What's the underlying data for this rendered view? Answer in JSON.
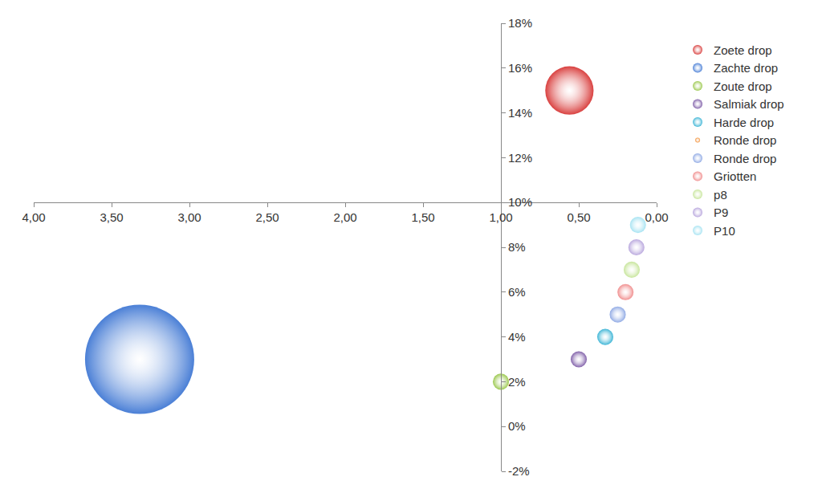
{
  "chart_data": {
    "type": "bubble",
    "series": [
      {
        "name": "Zoete drop",
        "color": "#d9403f",
        "x": [
          0.56
        ],
        "values": [
          15
        ],
        "sizes": [
          9
        ]
      },
      {
        "name": "Zachte drop",
        "color": "#4a7fd6",
        "x": [
          3.32
        ],
        "values": [
          3
        ],
        "sizes": [
          46
        ]
      },
      {
        "name": "Zoute drop",
        "color": "#9bc84d",
        "x": [
          1.0
        ],
        "values": [
          2
        ],
        "sizes": [
          1
        ]
      },
      {
        "name": "Salmiak drop",
        "color": "#7f5ea8",
        "x": [
          0.5
        ],
        "values": [
          3
        ],
        "sizes": [
          1
        ]
      },
      {
        "name": "Harde drop",
        "color": "#3db5d6",
        "x": [
          0.33
        ],
        "values": [
          4
        ],
        "sizes": [
          1
        ]
      },
      {
        "name": "Ronde drop",
        "color": "#f3923b",
        "x": [
          null
        ],
        "values": [
          null
        ],
        "sizes": [
          null
        ]
      },
      {
        "name": "Ronde drop",
        "color": "#8fa9e4",
        "x": [
          0.25
        ],
        "values": [
          5
        ],
        "sizes": [
          1
        ]
      },
      {
        "name": "Griotten",
        "color": "#f08d8d",
        "x": [
          0.2
        ],
        "values": [
          6
        ],
        "sizes": [
          1
        ]
      },
      {
        "name": "p8",
        "color": "#c7e59b",
        "x": [
          0.16
        ],
        "values": [
          7
        ],
        "sizes": [
          1
        ]
      },
      {
        "name": "P9",
        "color": "#b8a6dd",
        "x": [
          0.13
        ],
        "values": [
          8
        ],
        "sizes": [
          1
        ]
      },
      {
        "name": "P10",
        "color": "#a6e3f2",
        "x": [
          0.12
        ],
        "values": [
          9
        ],
        "sizes": [
          1
        ]
      }
    ],
    "xlim": [
      4,
      0
    ],
    "xticks": [
      {
        "value": 4,
        "label": "4,00"
      },
      {
        "value": 3.5,
        "label": "3,50"
      },
      {
        "value": 3,
        "label": "3,00"
      },
      {
        "value": 2.5,
        "label": "2,50"
      },
      {
        "value": 2,
        "label": "2,00"
      },
      {
        "value": 1.5,
        "label": "1,50"
      },
      {
        "value": 1,
        "label": "1,00"
      },
      {
        "value": 0.5,
        "label": "0,50"
      },
      {
        "value": 0,
        "label": "0,00"
      }
    ],
    "ylim": [
      -2,
      18
    ],
    "yticks": [
      {
        "value": -2,
        "label": "-2%"
      },
      {
        "value": 0,
        "label": "0%"
      },
      {
        "value": 2,
        "label": "2%"
      },
      {
        "value": 4,
        "label": "4%"
      },
      {
        "value": 6,
        "label": "6%"
      },
      {
        "value": 8,
        "label": "8%"
      },
      {
        "value": 10,
        "label": "10%"
      },
      {
        "value": 12,
        "label": "12%"
      },
      {
        "value": 14,
        "label": "14%"
      },
      {
        "value": 16,
        "label": "16%"
      },
      {
        "value": 18,
        "label": "18%"
      }
    ],
    "grid": false,
    "legend": "right"
  }
}
